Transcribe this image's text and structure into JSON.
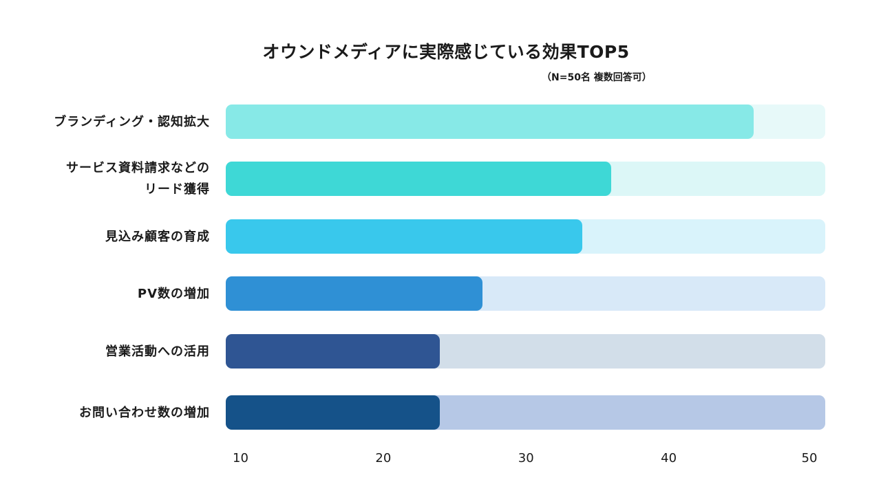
{
  "chart_data": {
    "type": "bar",
    "orientation": "horizontal",
    "title": "オウンドメディアに実際感じている効果TOP5",
    "subtitle": "（N=50名 複数回答可）",
    "categories": [
      [
        "ブランディング・認知拡大"
      ],
      [
        "サービス資料請求などの",
        "リード獲得"
      ],
      [
        "見込み顧客の育成"
      ],
      [
        "PV数の増加"
      ],
      [
        "営業活動への活用"
      ],
      [
        "お問い合わせ数の増加"
      ]
    ],
    "values": [
      45,
      35,
      33,
      26,
      23,
      23
    ],
    "track_max": [
      50,
      50,
      50,
      50,
      50,
      50
    ],
    "x_ticks": [
      "10",
      "20",
      "30",
      "40",
      "50"
    ],
    "xlim": [
      8,
      50
    ],
    "bar_colors": [
      "#87e9e7",
      "#3ed8d6",
      "#39c8ec",
      "#2f90d5",
      "#2f5593",
      "#155289"
    ],
    "track_colors": [
      "#e7f9f9",
      "#dcf7f7",
      "#d9f3fb",
      "#d8e9f8",
      "#d2dee9",
      "#b6c8e6"
    ]
  }
}
